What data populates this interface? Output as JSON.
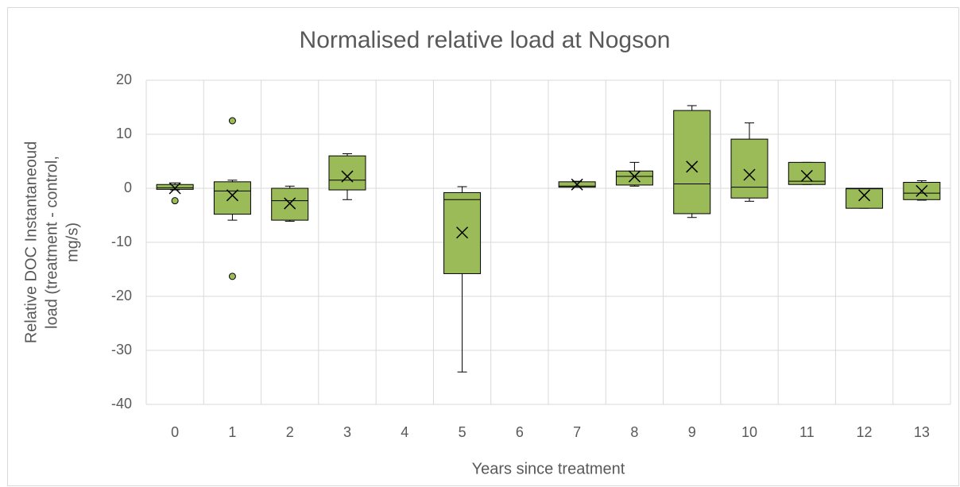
{
  "chart_data": {
    "type": "box",
    "title": "Normalised relative load at Nogson",
    "x_label": "Years since treatment",
    "y_label": [
      "Relative DOC Instantaneoud",
      "load (treatment - control,",
      "mg/s)"
    ],
    "categories": [
      "0",
      "1",
      "2",
      "3",
      "4",
      "5",
      "6",
      "7",
      "8",
      "9",
      "10",
      "11",
      "12",
      "13"
    ],
    "boxes": [
      {
        "min": -0.3,
        "q1": -0.2,
        "median": 0.1,
        "q3": 0.7,
        "max": 1.0,
        "mean": 0,
        "outliers": [
          -2.3
        ]
      },
      {
        "min": -5.9,
        "q1": -4.8,
        "median": -0.5,
        "q3": 1.2,
        "max": 1.5,
        "mean": -1.3,
        "outliers": [
          12.5,
          -16.3
        ]
      },
      {
        "min": -6.1,
        "q1": -5.9,
        "median": -2.3,
        "q3": 0,
        "max": 0.4,
        "mean": -2.8,
        "outliers": []
      },
      {
        "min": -2.1,
        "q1": -0.3,
        "median": 1.5,
        "q3": 6.0,
        "max": 6.4,
        "mean": 2.2,
        "outliers": []
      },
      null,
      {
        "min": -34,
        "q1": -15.8,
        "median": -2.1,
        "q3": -0.8,
        "max": 0.3,
        "mean": -8.2,
        "outliers": []
      },
      null,
      {
        "min": 0.2,
        "q1": 0.2,
        "median": 0.4,
        "q3": 1.2,
        "max": 1.3,
        "mean": 0.7,
        "outliers": []
      },
      {
        "min": 0.4,
        "q1": 0.6,
        "median": 2.2,
        "q3": 3.2,
        "max": 4.8,
        "mean": 2.2,
        "outliers": []
      },
      {
        "min": -5.4,
        "q1": -4.7,
        "median": 0.8,
        "q3": 14.4,
        "max": 15.3,
        "mean": 4.0,
        "outliers": []
      },
      {
        "min": -2.4,
        "q1": -1.8,
        "median": 0.2,
        "q3": 9.1,
        "max": 12.1,
        "mean": 2.5,
        "outliers": []
      },
      {
        "min": 0.7,
        "q1": 0.7,
        "median": 1.3,
        "q3": 4.8,
        "max": 4.8,
        "mean": 2.3,
        "outliers": []
      },
      {
        "min": -3.7,
        "q1": -3.7,
        "median": -0.1,
        "q3": 0,
        "max": 0,
        "mean": -1.3,
        "outliers": []
      },
      {
        "min": -2.2,
        "q1": -2.1,
        "median": -0.9,
        "q3": 1.1,
        "max": 1.4,
        "mean": -0.5,
        "outliers": []
      }
    ],
    "color": "#9bbb59",
    "ylim": [
      -40,
      20
    ],
    "yticks": [
      -40,
      -30,
      -20,
      -10,
      0,
      10,
      20
    ],
    "grid": true
  }
}
